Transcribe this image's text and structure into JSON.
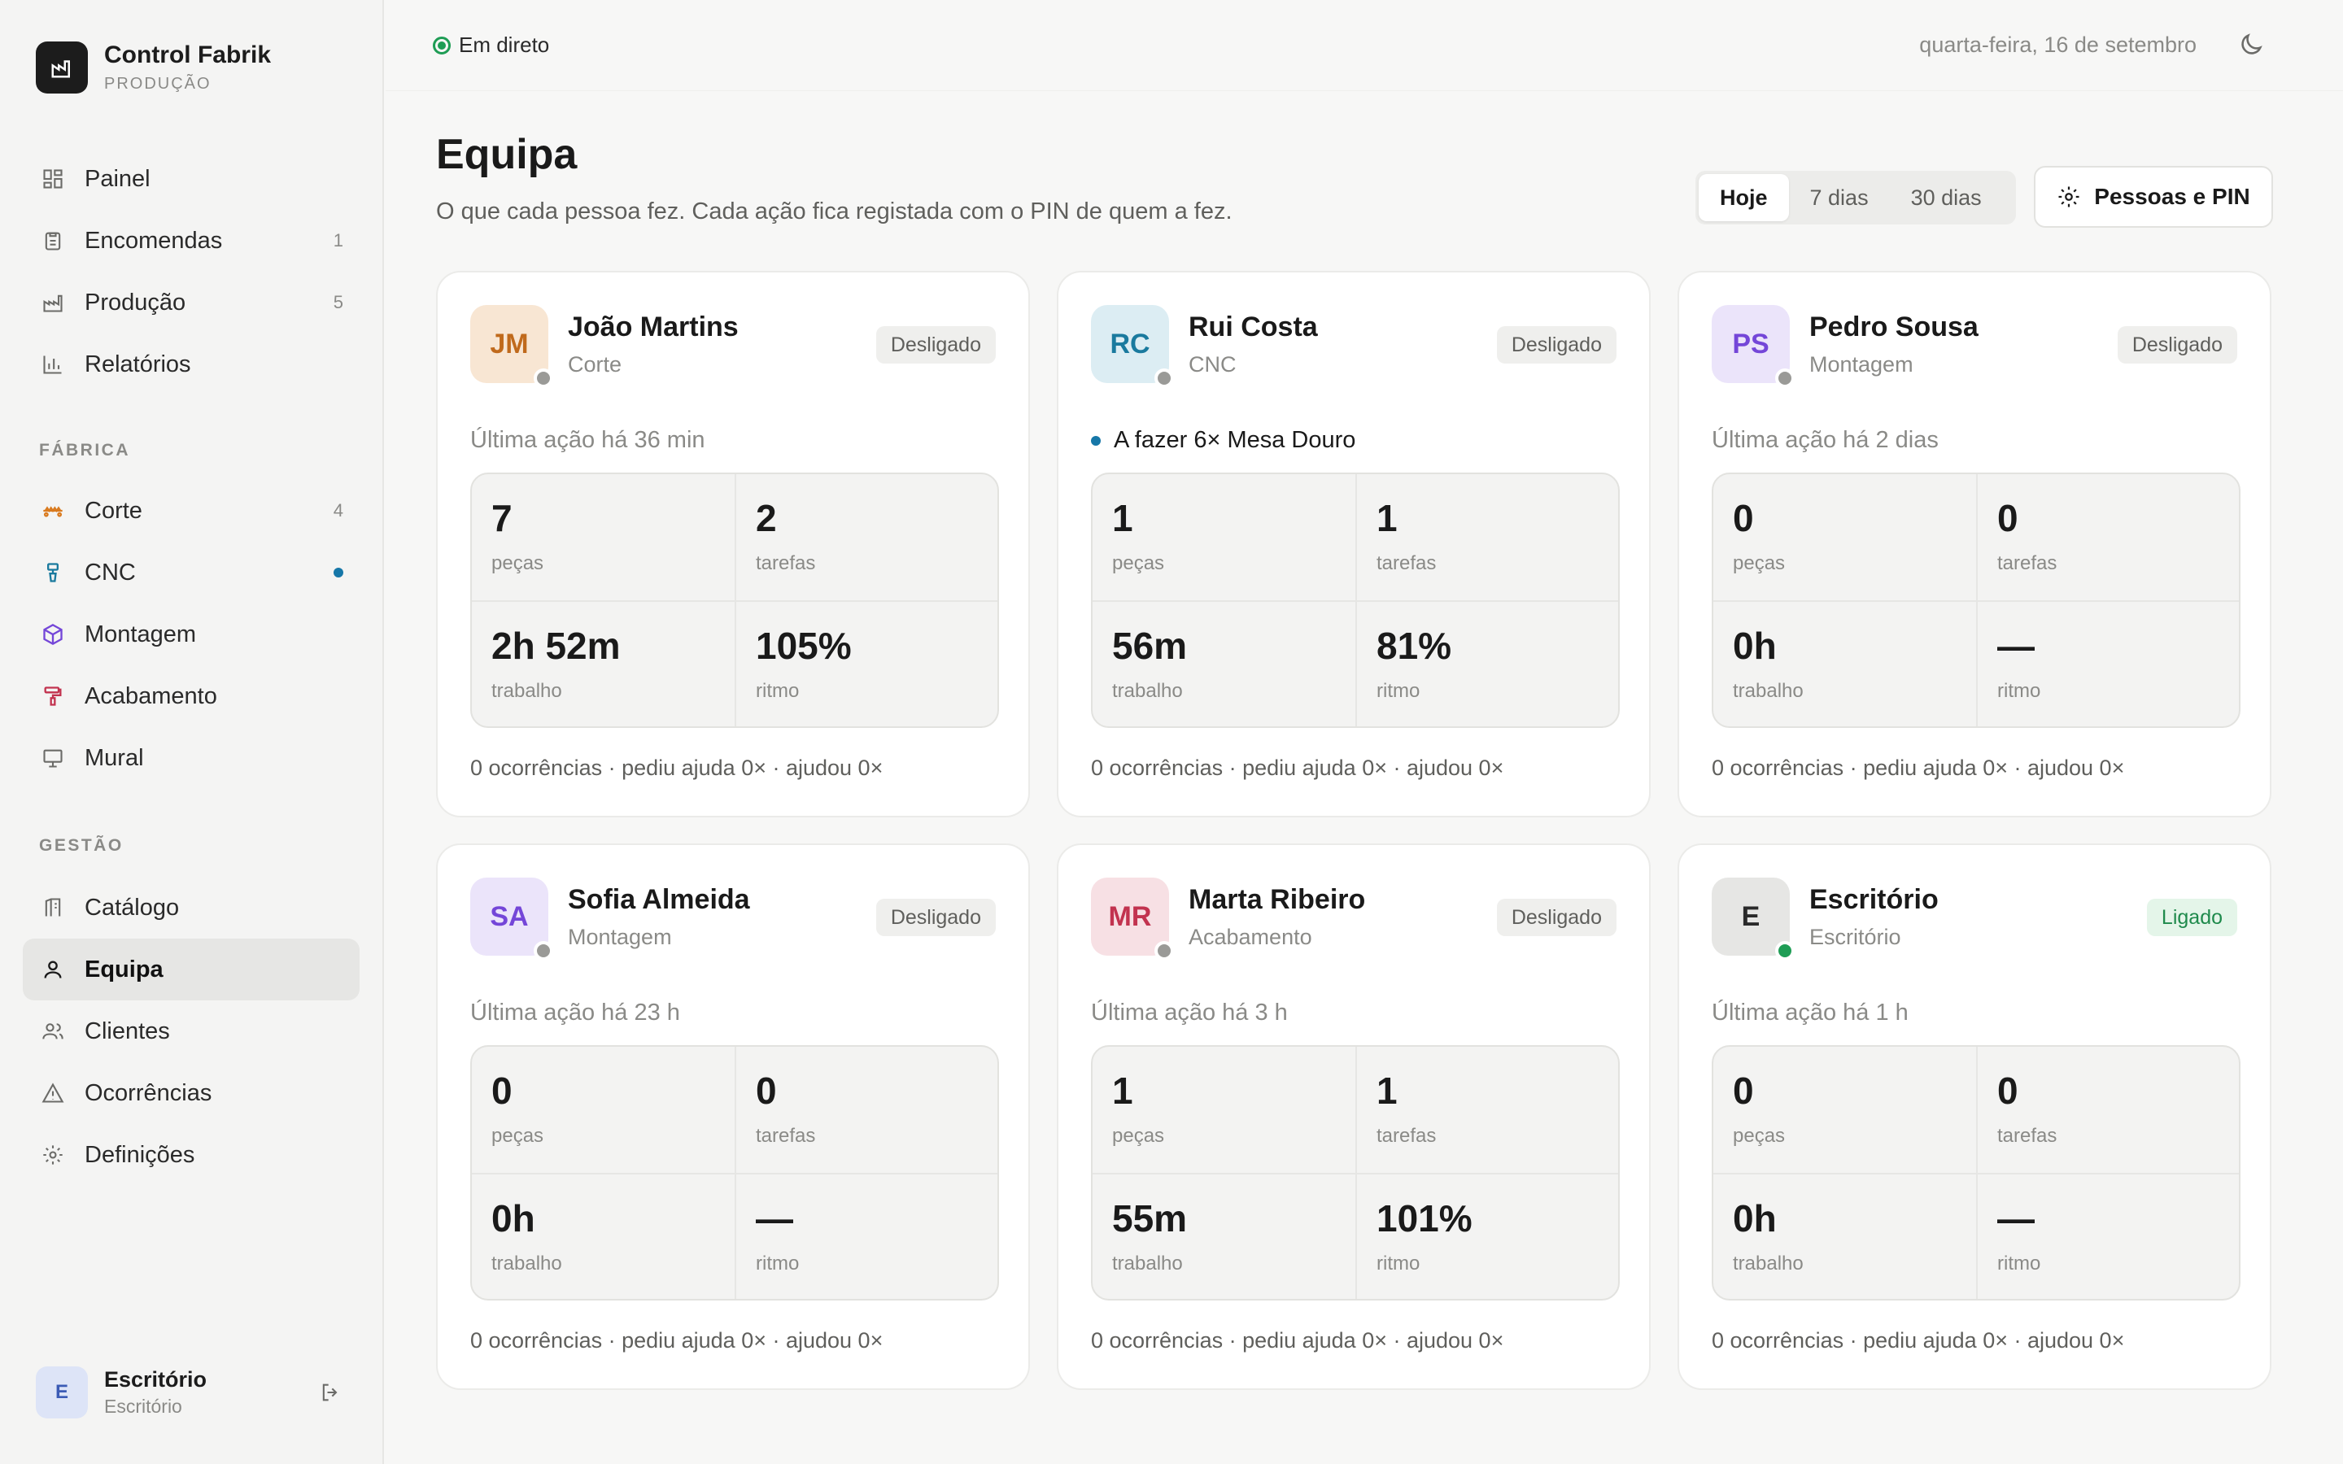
{
  "brand": {
    "name": "Control Fabrik",
    "sub": "PRODUÇÃO"
  },
  "sidebar": {
    "main": [
      {
        "label": "Painel",
        "icon": "dashboard-icon",
        "count": ""
      },
      {
        "label": "Encomendas",
        "icon": "clipboard-icon",
        "count": "1"
      },
      {
        "label": "Produção",
        "icon": "factory-icon",
        "count": "5"
      },
      {
        "label": "Relatórios",
        "icon": "bar-chart-icon",
        "count": ""
      }
    ],
    "fabrica_label": "FÁBRICA",
    "fabrica": [
      {
        "label": "Corte",
        "icon": "saw-icon",
        "count": "4"
      },
      {
        "label": "CNC",
        "icon": "drill-icon",
        "count": ""
      },
      {
        "label": "Montagem",
        "icon": "cube-icon",
        "count": ""
      },
      {
        "label": "Acabamento",
        "icon": "paint-roller-icon",
        "count": ""
      },
      {
        "label": "Mural",
        "icon": "monitor-icon",
        "count": ""
      }
    ],
    "gestao_label": "GESTÃO",
    "gestao": [
      {
        "label": "Catálogo",
        "icon": "catalog-icon"
      },
      {
        "label": "Equipa",
        "icon": "user-icon"
      },
      {
        "label": "Clientes",
        "icon": "users-icon"
      },
      {
        "label": "Ocorrências",
        "icon": "warning-icon"
      },
      {
        "label": "Definições",
        "icon": "gear-icon"
      }
    ]
  },
  "user": {
    "initial": "E",
    "name": "Escritório",
    "role": "Escritório"
  },
  "topbar": {
    "live": "Em direto",
    "date": "quarta-feira, 16 de setembro"
  },
  "page": {
    "title": "Equipa",
    "subtitle": "O que cada pessoa fez. Cada ação fica registada com o PIN de quem a fez.",
    "ranges": [
      "Hoje",
      "7 dias",
      "30 dias"
    ],
    "people_button": "Pessoas e PIN"
  },
  "stat_labels": {
    "pieces": "peças",
    "tasks": "tarefas",
    "work": "trabalho",
    "pace": "ritmo"
  },
  "cards": [
    {
      "initials": "JM",
      "name": "João Martins",
      "role": "Corte",
      "status": "Desligado",
      "activity": "Última ação há 36 min",
      "pieces": "7",
      "tasks": "2",
      "work": "2h 52m",
      "pace": "105%",
      "footer": "0 ocorrências · pediu ajuda 0× · ajudou 0×",
      "avatar_bg": "#f8e6d3",
      "avatar_fg": "#c06a1c"
    },
    {
      "initials": "RC",
      "name": "Rui Costa",
      "role": "CNC",
      "status": "Desligado",
      "activity": "A fazer 6× Mesa Douro",
      "pieces": "1",
      "tasks": "1",
      "work": "56m",
      "pace": "81%",
      "footer": "0 ocorrências · pediu ajuda 0× · ajudou 0×",
      "avatar_bg": "#dcedf3",
      "avatar_fg": "#1a7a9e"
    },
    {
      "initials": "PS",
      "name": "Pedro Sousa",
      "role": "Montagem",
      "status": "Desligado",
      "activity": "Última ação há 2 dias",
      "pieces": "0",
      "tasks": "0",
      "work": "0h",
      "pace": "—",
      "footer": "0 ocorrências · pediu ajuda 0× · ajudou 0×",
      "avatar_bg": "#ebe4fa",
      "avatar_fg": "#7446d8"
    },
    {
      "initials": "SA",
      "name": "Sofia Almeida",
      "role": "Montagem",
      "status": "Desligado",
      "activity": "Última ação há 23 h",
      "pieces": "0",
      "tasks": "0",
      "work": "0h",
      "pace": "—",
      "footer": "0 ocorrências · pediu ajuda 0× · ajudou 0×",
      "avatar_bg": "#ebe4fa",
      "avatar_fg": "#7446d8"
    },
    {
      "initials": "MR",
      "name": "Marta Ribeiro",
      "role": "Acabamento",
      "status": "Desligado",
      "activity": "Última ação há 3 h",
      "pieces": "1",
      "tasks": "1",
      "work": "55m",
      "pace": "101%",
      "footer": "0 ocorrências · pediu ajuda 0× · ajudou 0×",
      "avatar_bg": "#f7e0e4",
      "avatar_fg": "#c2334f"
    },
    {
      "initials": "E",
      "name": "Escritório",
      "role": "Escritório",
      "status": "Ligado",
      "activity": "Última ação há 1 h",
      "pieces": "0",
      "tasks": "0",
      "work": "0h",
      "pace": "—",
      "footer": "0 ocorrências · pediu ajuda 0× · ajudou 0×",
      "avatar_bg": "#e6e6e4",
      "avatar_fg": "#2a2a2a"
    }
  ]
}
